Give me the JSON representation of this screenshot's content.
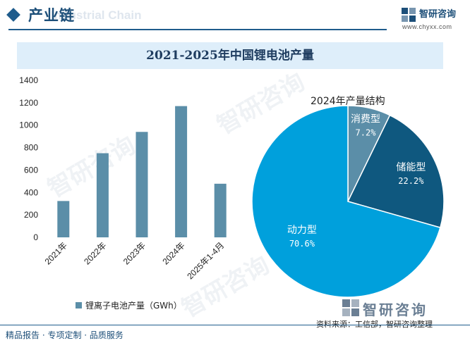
{
  "header": {
    "title": "产业链",
    "ghost_text": "Industrial Chain",
    "logo_name": "智研咨询",
    "logo_url": "www.chyxx.com"
  },
  "banner": {
    "title": "2021-2025年中国锂电池产量"
  },
  "chart_data": [
    {
      "type": "bar",
      "categories": [
        "2021年",
        "2022年",
        "2023年",
        "2024年",
        "2025年1-4月"
      ],
      "series": [
        {
          "name": "锂离子电池产量（GWh）",
          "values": [
            324,
            750,
            940,
            1170,
            478
          ]
        }
      ],
      "ylim": [
        0,
        1400
      ],
      "yticks": [
        "0",
        "200",
        "400",
        "600",
        "800",
        "1000",
        "1200",
        "1400"
      ],
      "legend_position": "bottom",
      "grid": false,
      "color": "#5b8ea8"
    },
    {
      "type": "pie",
      "title": "2024年产量结构",
      "labels": [
        "消费型",
        "储能型",
        "动力型"
      ],
      "values": [
        7.2,
        22.2,
        70.6
      ],
      "value_labels": [
        "7.2%",
        "22.2%",
        "70.6%"
      ],
      "colors": [
        "#5b8ea8",
        "#0f587f",
        "#00a0dc"
      ]
    }
  ],
  "footer": {
    "source": "资料来源：工信部，智研咨询整理",
    "left_text": "精品报告 · 专项定制 · 品质服务",
    "brand": "智研咨询"
  }
}
